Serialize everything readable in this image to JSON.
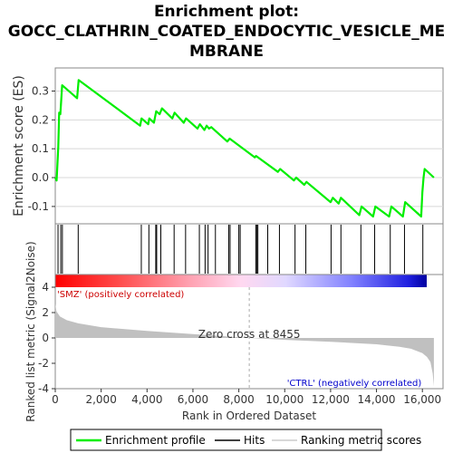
{
  "title_lines": [
    "Enrichment plot:",
    "GOCC_CLATHRIN_COATED_ENDOCYTIC_VESICLE_ME",
    "MBRANE"
  ],
  "chart_data": {
    "type": "line",
    "es_panel": {
      "ylabel": "Enrichment score (ES)",
      "ylim": [
        -0.16,
        0.38
      ],
      "yticks": [
        -0.1,
        0.0,
        0.1,
        0.2,
        0.3
      ],
      "ytick_labels": [
        "-0.1",
        "0.0",
        "0.1",
        "0.2",
        "0.3"
      ],
      "line_color": "#00ee00",
      "series": [
        {
          "name": "Enrichment profile",
          "x": [
            0,
            60,
            130,
            170,
            220,
            300,
            950,
            1020,
            3700,
            3760,
            4050,
            4100,
            4300,
            4400,
            4550,
            4650,
            5100,
            5200,
            5600,
            5700,
            6200,
            6300,
            6500,
            6600,
            6700,
            6800,
            7500,
            7600,
            8700,
            8750,
            9700,
            9800,
            10400,
            10500,
            10850,
            10950,
            12000,
            12100,
            12350,
            12450,
            13250,
            13350,
            13850,
            13950,
            14550,
            14650,
            15150,
            15250,
            15950,
            16000,
            16050,
            16100,
            16500
          ],
          "y": [
            0.0,
            -0.01,
            0.105,
            0.225,
            0.22,
            0.32,
            0.275,
            0.338,
            0.18,
            0.205,
            0.185,
            0.205,
            0.19,
            0.23,
            0.22,
            0.24,
            0.205,
            0.225,
            0.19,
            0.205,
            0.17,
            0.185,
            0.165,
            0.18,
            0.17,
            0.175,
            0.125,
            0.135,
            0.07,
            0.075,
            0.02,
            0.03,
            -0.01,
            0.0,
            -0.025,
            -0.015,
            -0.085,
            -0.07,
            -0.09,
            -0.07,
            -0.13,
            -0.1,
            -0.135,
            -0.1,
            -0.135,
            -0.1,
            -0.135,
            -0.085,
            -0.135,
            -0.05,
            0.0,
            0.03,
            0.0
          ]
        }
      ]
    },
    "hits": [
      120,
      240,
      310,
      1000,
      3750,
      4080,
      4380,
      4420,
      4600,
      5180,
      5680,
      6280,
      6530,
      6660,
      6980,
      7560,
      7620,
      8000,
      8060,
      8740,
      8780,
      8830,
      9260,
      9770,
      10450,
      10920,
      12020,
      12450,
      13320,
      13920,
      14600,
      15220,
      16020
    ],
    "ranking_panel": {
      "ylabel": "Ranked list metric (Signal2Noise)",
      "xlabel": "Rank in Ordered Dataset",
      "ylim": [
        -4,
        5
      ],
      "yticks": [
        -4,
        -2,
        0,
        2,
        4
      ],
      "ytick_labels": [
        "-4",
        "-2",
        "0",
        "2",
        "4"
      ],
      "xlim": [
        0,
        16900
      ],
      "xticks": [
        0,
        2000,
        4000,
        6000,
        8000,
        10000,
        12000,
        14000,
        16000
      ],
      "xtick_labels": [
        "0",
        "2,000",
        "4,000",
        "6,000",
        "8,000",
        "10,000",
        "12,000",
        "14,000",
        "16,000"
      ],
      "zero_cross_label": "Zero cross at 8455",
      "zero_cross_rank": 8455,
      "pos_label": "'SMZ' (positively correlated)",
      "neg_label": "'CTRL' (negatively correlated)",
      "metric_profile": {
        "x": [
          0,
          50,
          200,
          500,
          1000,
          2000,
          4000,
          6000,
          8455,
          10000,
          12000,
          14000,
          15000,
          15500,
          16000,
          16200,
          16350,
          16450,
          16500
        ],
        "y": [
          2.7,
          2.1,
          1.7,
          1.4,
          1.15,
          0.85,
          0.55,
          0.3,
          0.0,
          -0.15,
          -0.3,
          -0.5,
          -0.7,
          -0.85,
          -1.2,
          -1.5,
          -1.9,
          -2.8,
          -3.8
        ]
      }
    },
    "legend": [
      "Enrichment profile",
      "Hits",
      "Ranking metric scores"
    ],
    "colors": {
      "profile": "#00ee00",
      "hits": "#000000",
      "metric_fill": "#c0c0c0",
      "pos_text": "#cc0000",
      "neg_text": "#0000cc"
    }
  }
}
